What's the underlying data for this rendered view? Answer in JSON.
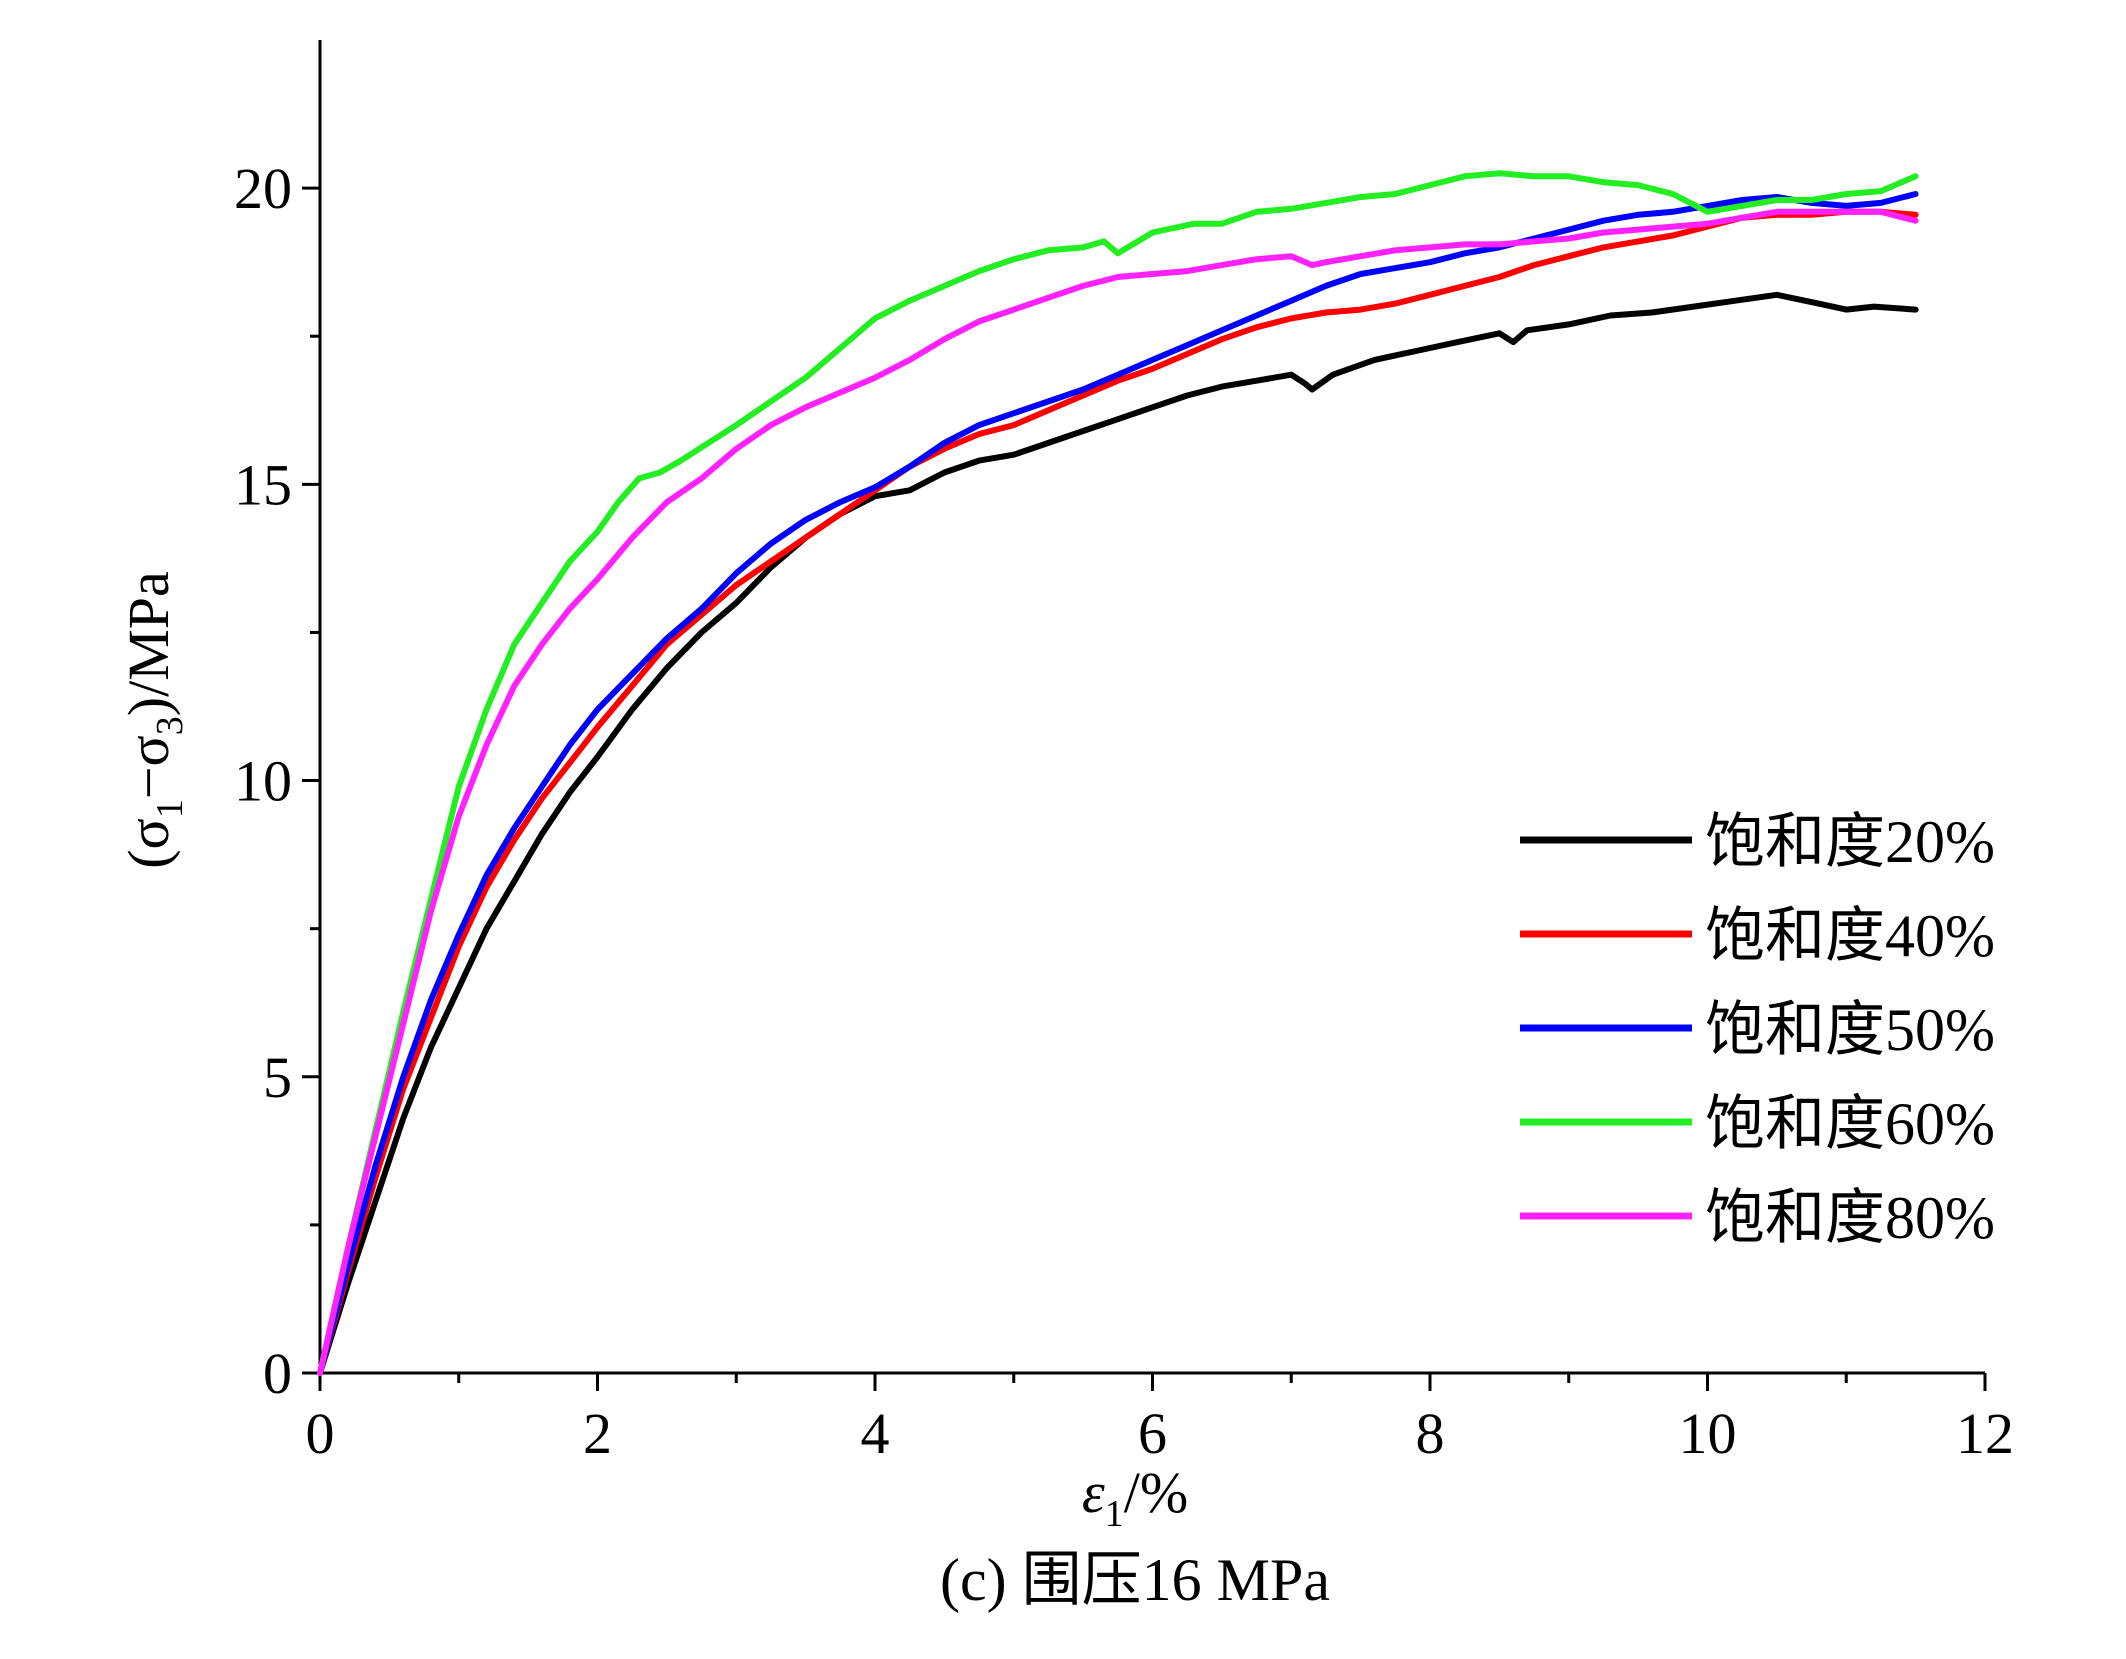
{
  "caption": "(c) 围压16 MPa",
  "chart_data": {
    "type": "line",
    "xlabel_symbol": "ε",
    "xlabel_sub": "1",
    "xlabel_suffix": "/%",
    "ylabel_parts": [
      "(σ",
      "1",
      "−σ",
      "3",
      ")/MPa"
    ],
    "xlim": [
      0,
      12
    ],
    "ylim": [
      0,
      22.5
    ],
    "x_ticks": [
      0,
      2,
      4,
      6,
      8,
      10,
      12
    ],
    "y_ticks": [
      0,
      5,
      10,
      15,
      20
    ],
    "legend_position": "right-middle",
    "grid": false,
    "series": [
      {
        "name": "饱和度20%",
        "color": "#000000",
        "x": [
          0,
          0.2,
          0.4,
          0.6,
          0.8,
          1.0,
          1.2,
          1.4,
          1.6,
          1.8,
          2.0,
          2.25,
          2.5,
          2.75,
          3.0,
          3.25,
          3.5,
          3.75,
          4.0,
          4.25,
          4.5,
          4.75,
          5.0,
          5.25,
          5.5,
          5.75,
          6.0,
          6.25,
          6.5,
          6.75,
          7.0,
          7.1,
          7.15,
          7.3,
          7.6,
          7.9,
          8.2,
          8.5,
          8.6,
          8.7,
          9.0,
          9.3,
          9.6,
          9.9,
          10.2,
          10.5,
          10.8,
          11.0,
          11.2,
          11.5
        ],
        "y": [
          0,
          1.5,
          2.9,
          4.3,
          5.5,
          6.5,
          7.5,
          8.3,
          9.1,
          9.8,
          10.4,
          11.2,
          11.9,
          12.5,
          13.0,
          13.6,
          14.1,
          14.5,
          14.8,
          14.9,
          15.2,
          15.4,
          15.5,
          15.7,
          15.9,
          16.1,
          16.3,
          16.5,
          16.65,
          16.75,
          16.85,
          16.7,
          16.6,
          16.85,
          17.1,
          17.25,
          17.4,
          17.55,
          17.4,
          17.6,
          17.7,
          17.85,
          17.9,
          18.0,
          18.1,
          18.2,
          18.05,
          17.95,
          18.0,
          17.95
        ]
      },
      {
        "name": "饱和度40%",
        "color": "#ff0000",
        "x": [
          0,
          0.2,
          0.4,
          0.6,
          0.8,
          1.0,
          1.2,
          1.4,
          1.6,
          1.8,
          2.0,
          2.25,
          2.5,
          2.75,
          3.0,
          3.25,
          3.5,
          3.75,
          4.0,
          4.25,
          4.5,
          4.75,
          5.0,
          5.25,
          5.5,
          5.75,
          6.0,
          6.25,
          6.5,
          6.75,
          7.0,
          7.25,
          7.5,
          7.75,
          8.0,
          8.25,
          8.5,
          8.75,
          9.0,
          9.25,
          9.5,
          9.75,
          10.0,
          10.25,
          10.5,
          10.75,
          11.0,
          11.25,
          11.5
        ],
        "y": [
          0,
          1.7,
          3.3,
          4.8,
          6.0,
          7.2,
          8.2,
          9.0,
          9.7,
          10.3,
          10.9,
          11.6,
          12.3,
          12.8,
          13.3,
          13.7,
          14.1,
          14.5,
          14.9,
          15.3,
          15.6,
          15.85,
          16.0,
          16.25,
          16.5,
          16.75,
          16.95,
          17.2,
          17.45,
          17.65,
          17.8,
          17.9,
          17.95,
          18.05,
          18.2,
          18.35,
          18.5,
          18.7,
          18.85,
          19.0,
          19.1,
          19.2,
          19.35,
          19.5,
          19.55,
          19.55,
          19.6,
          19.6,
          19.55
        ]
      },
      {
        "name": "饱和度50%",
        "color": "#0000ff",
        "x": [
          0,
          0.2,
          0.4,
          0.6,
          0.8,
          1.0,
          1.2,
          1.4,
          1.6,
          1.8,
          2.0,
          2.25,
          2.5,
          2.75,
          3.0,
          3.25,
          3.5,
          3.75,
          4.0,
          4.25,
          4.5,
          4.75,
          5.0,
          5.25,
          5.5,
          5.75,
          6.0,
          6.25,
          6.5,
          6.75,
          7.0,
          7.25,
          7.5,
          7.75,
          8.0,
          8.25,
          8.5,
          8.75,
          9.0,
          9.25,
          9.5,
          9.75,
          10.0,
          10.25,
          10.5,
          10.75,
          11.0,
          11.25,
          11.5
        ],
        "y": [
          0,
          1.8,
          3.5,
          5.0,
          6.3,
          7.4,
          8.4,
          9.2,
          9.9,
          10.6,
          11.2,
          11.8,
          12.4,
          12.9,
          13.5,
          14.0,
          14.4,
          14.7,
          14.95,
          15.3,
          15.7,
          16.0,
          16.2,
          16.4,
          16.6,
          16.85,
          17.1,
          17.35,
          17.6,
          17.85,
          18.1,
          18.35,
          18.55,
          18.65,
          18.75,
          18.9,
          19.0,
          19.15,
          19.3,
          19.45,
          19.55,
          19.6,
          19.7,
          19.8,
          19.85,
          19.75,
          19.7,
          19.75,
          19.9
        ]
      },
      {
        "name": "饱和度60%",
        "color": "#22ee22",
        "x": [
          0,
          0.2,
          0.4,
          0.6,
          0.8,
          1.0,
          1.2,
          1.4,
          1.6,
          1.8,
          2.0,
          2.15,
          2.3,
          2.45,
          2.6,
          2.8,
          3.0,
          3.25,
          3.5,
          3.75,
          4.0,
          4.25,
          4.5,
          4.75,
          5.0,
          5.25,
          5.5,
          5.65,
          5.75,
          6.0,
          6.3,
          6.5,
          6.75,
          7.0,
          7.25,
          7.5,
          7.75,
          8.0,
          8.25,
          8.5,
          8.75,
          9.0,
          9.25,
          9.5,
          9.75,
          10.0,
          10.25,
          10.5,
          10.75,
          11.0,
          11.25,
          11.5
        ],
        "y": [
          0,
          2.1,
          4.1,
          6.1,
          8.0,
          9.9,
          11.2,
          12.3,
          13.0,
          13.7,
          14.2,
          14.7,
          15.1,
          15.2,
          15.4,
          15.7,
          16.0,
          16.4,
          16.8,
          17.3,
          17.8,
          18.1,
          18.35,
          18.6,
          18.8,
          18.95,
          19.0,
          19.1,
          18.9,
          19.25,
          19.4,
          19.4,
          19.6,
          19.65,
          19.75,
          19.85,
          19.9,
          20.05,
          20.2,
          20.25,
          20.2,
          20.2,
          20.1,
          20.05,
          19.9,
          19.6,
          19.7,
          19.8,
          19.8,
          19.9,
          19.95,
          20.2
        ]
      },
      {
        "name": "饱和度80%",
        "color": "#ff22ff",
        "x": [
          0,
          0.2,
          0.4,
          0.6,
          0.8,
          1.0,
          1.2,
          1.4,
          1.6,
          1.8,
          2.0,
          2.25,
          2.5,
          2.75,
          3.0,
          3.25,
          3.5,
          3.75,
          4.0,
          4.25,
          4.5,
          4.75,
          5.0,
          5.25,
          5.5,
          5.75,
          6.0,
          6.25,
          6.5,
          6.75,
          7.0,
          7.15,
          7.25,
          7.5,
          7.75,
          8.0,
          8.25,
          8.5,
          8.75,
          9.0,
          9.25,
          9.5,
          9.75,
          10.0,
          10.25,
          10.5,
          10.75,
          11.0,
          11.25,
          11.5
        ],
        "y": [
          0,
          2.1,
          4.0,
          5.9,
          7.8,
          9.4,
          10.6,
          11.6,
          12.3,
          12.9,
          13.4,
          14.1,
          14.7,
          15.1,
          15.6,
          16.0,
          16.3,
          16.55,
          16.8,
          17.1,
          17.45,
          17.75,
          17.95,
          18.15,
          18.35,
          18.5,
          18.55,
          18.6,
          18.7,
          18.8,
          18.85,
          18.7,
          18.75,
          18.85,
          18.95,
          19.0,
          19.05,
          19.05,
          19.1,
          19.15,
          19.25,
          19.3,
          19.35,
          19.4,
          19.5,
          19.6,
          19.6,
          19.6,
          19.6,
          19.45
        ]
      }
    ]
  }
}
